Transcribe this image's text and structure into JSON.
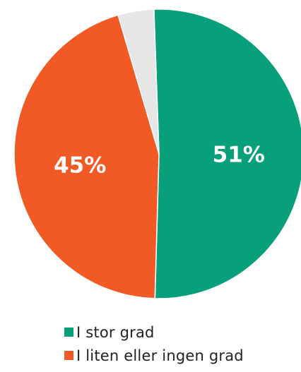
{
  "chart_data": {
    "type": "pie",
    "start_angle_deg": -2,
    "slices": [
      {
        "label": "I stor grad",
        "value": 51,
        "data_label": "51%",
        "color": "#08A07A",
        "show_label": true,
        "in_legend": true
      },
      {
        "label": "I liten eller ingen grad",
        "value": 45,
        "data_label": "45%",
        "color": "#F15A24",
        "show_label": true,
        "in_legend": true
      },
      {
        "label": "",
        "value": 4,
        "data_label": "",
        "color": "#E6E6E6",
        "show_label": false,
        "in_legend": false
      }
    ],
    "legend": {
      "position": "bottom",
      "items": [
        "I stor grad",
        "I liten eller ingen grad"
      ]
    },
    "label_color": "#FFFFFF"
  }
}
